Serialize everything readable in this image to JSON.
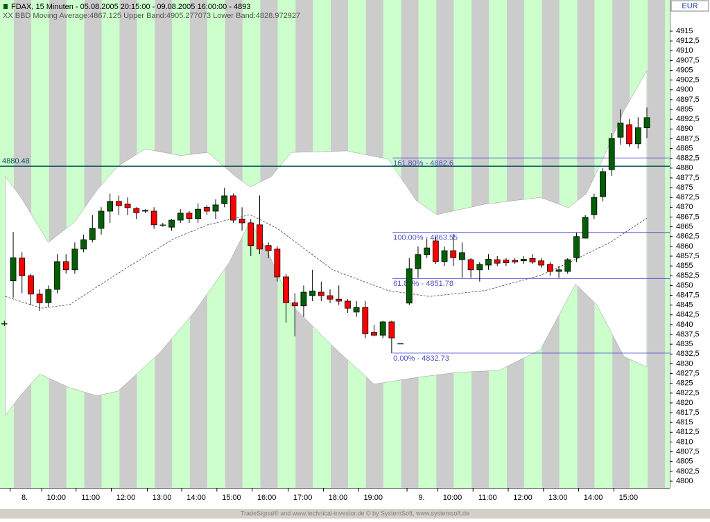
{
  "chart_data": {
    "type": "candlestick",
    "title": "FDAX, 15 Minuten - 05.08.2005 20:15:00 - 09.08.2005 16:00:00 - 4893",
    "subtitle": "XX BBD Moving Average:4867.125 Upper Band:4905.277073 Lower Band:4828.972927",
    "currency": "EUR",
    "footer": "TradeSignal® and www.technical-investor.de © by SystemSoft, www.systemsoft.de",
    "up_color": "#006000",
    "down_color": "#ff0000",
    "open": [
      4840.3,
      4851.2,
      4857,
      4852.5,
      4847.8,
      4845.6,
      4849,
      4856.1,
      4854,
      4859.3,
      4861.7,
      4864.6,
      4869,
      4871.5,
      4870.8,
      4869.7,
      4869,
      4869,
      4865.5,
      4864.9,
      4866.7,
      4868.5,
      4867.1,
      4870,
      4869,
      4870.9,
      4872.9,
      4867,
      4866,
      4865.5,
      4860.2,
      4859.3,
      4852.2,
      4845.6,
      4844.8,
      4847.4,
      4848.3,
      4847.4,
      4846.5,
      4846,
      4843.2,
      4844.4,
      4838,
      4837.3,
      4840.7,
      4835.2,
      4845.5,
      4854.3,
      4857.9,
      4861.4,
      4856.1,
      4858.9,
      4856.6,
      4856.6,
      4854,
      4855.2,
      4856.6,
      4856.5,
      4856.4,
      4856.3,
      4856.9,
      4856.3,
      4855.4,
      4853.6,
      4853.6,
      4857.1,
      4862.1,
      4868.1,
      4872.7,
      4879.6,
      4887.9,
      4891.1,
      4886.2,
      4890.3
    ],
    "high": [
      4841,
      4863.7,
      4858.5,
      4853,
      4849,
      4850,
      4858,
      4858,
      4861,
      4863,
      4868,
      4870,
      4873.5,
      4873,
      4872.5,
      4870,
      4869.5,
      4870,
      4866,
      4867,
      4869.5,
      4869,
      4871,
      4870.5,
      4872,
      4875,
      4873.5,
      4870,
      4867,
      4873,
      4861,
      4860,
      4853,
      4848,
      4850,
      4854,
      4851,
      4849,
      4850,
      4846.5,
      4846,
      4846,
      4840,
      4841,
      4841,
      4835.2,
      4857,
      4860,
      4862,
      4862.5,
      4860,
      4863.2,
      4861,
      4857,
      4856,
      4858,
      4857.5,
      4857,
      4857,
      4857.5,
      4858,
      4857,
      4856,
      4855,
      4857,
      4863.5,
      4868,
      4873.5,
      4880,
      4889,
      4895,
      4892.5,
      4893,
      4895.5
    ],
    "low": [
      4839.6,
      4846.9,
      4848,
      4845,
      4843.5,
      4844.5,
      4848,
      4853,
      4853,
      4858.5,
      4861,
      4863,
      4866,
      4868,
      4868,
      4867,
      4868.5,
      4864.5,
      4865,
      4864,
      4866,
      4866,
      4866,
      4868,
      4867,
      4870,
      4866,
      4864,
      4857.5,
      4858,
      4857,
      4851,
      4840.5,
      4837,
      4842,
      4846,
      4846,
      4845.5,
      4845,
      4843,
      4842,
      4836.5,
      4837,
      4836.5,
      4832.7,
      4835.2,
      4845,
      4852,
      4857,
      4855.5,
      4855,
      4855,
      4852,
      4852,
      4851,
      4854,
      4855,
      4855,
      4855.5,
      4855.5,
      4855.5,
      4854.5,
      4852.5,
      4852,
      4853,
      4856,
      4862,
      4867,
      4871.5,
      4878,
      4886,
      4885.5,
      4885,
      4887.7
    ],
    "close": [
      4840.3,
      4857.1,
      4852.5,
      4847.8,
      4845.6,
      4849,
      4856.1,
      4854,
      4859.3,
      4861.7,
      4864.6,
      4869,
      4871.5,
      4870.4,
      4869.9,
      4868.6,
      4869.2,
      4865.5,
      4865.5,
      4866.7,
      4868.5,
      4867.1,
      4869.5,
      4869,
      4870.6,
      4872.9,
      4866.7,
      4866,
      4860.2,
      4859.3,
      4858.9,
      4852.2,
      4845.6,
      4844.8,
      4848.3,
      4848.6,
      4847.4,
      4846.5,
      4846,
      4844.2,
      4844.4,
      4837.7,
      4837.3,
      4840.7,
      4836.6,
      4835.2,
      4854.3,
      4857.9,
      4859.6,
      4856.1,
      4858.9,
      4857.1,
      4858.4,
      4854,
      4855.4,
      4856.7,
      4855.7,
      4855.8,
      4856,
      4856.7,
      4856,
      4855.2,
      4853.6,
      4854,
      4856.6,
      4862.5,
      4867.4,
      4872.5,
      4879.1,
      4887.6,
      4891.5,
      4886.2,
      4890.3,
      4892.9
    ],
    "upper_band": {
      "x": [
        0.1,
        1.9,
        4,
        5,
        8,
        10.5,
        12.9,
        16,
        20,
        23.1,
        26.3,
        27.9,
        30.3,
        32.6,
        38.9,
        43.6,
        46.8,
        49.1,
        54.6,
        60.9,
        64.1,
        66.1,
        68,
        70.4,
        73
      ],
      "values": [
        4877.8,
        4872.5,
        4864.6,
        4861,
        4866.3,
        4874.3,
        4880.5,
        4884.9,
        4883.2,
        4884,
        4877.8,
        4875.2,
        4877.8,
        4884,
        4884.4,
        4882.3,
        4871.7,
        4868.1,
        4870.8,
        4872.5,
        4869.9,
        4873.4,
        4882.3,
        4894.7,
        4904.9
      ]
    },
    "lower_band": {
      "x": [
        0.1,
        1.9,
        4,
        7.4,
        10.5,
        12.9,
        17.6,
        21.6,
        25.5,
        27.9,
        29.8,
        32.6,
        37.3,
        42,
        46.8,
        51.5,
        56.2,
        60.9,
        64.9,
        67.3,
        70.4,
        73
      ],
      "values": [
        4816.8,
        4822.1,
        4827.4,
        4823.9,
        4821.8,
        4823,
        4832.7,
        4843.3,
        4855.7,
        4866.3,
        4859.3,
        4845.1,
        4834.5,
        4824.8,
        4826.5,
        4827.8,
        4828.3,
        4833.6,
        4850.4,
        4845.1,
        4831.8,
        4829.2
      ]
    },
    "moving_average": {
      "x": [
        0.1,
        4.2,
        7.4,
        12.9,
        19.2,
        23.1,
        27.9,
        31,
        37.3,
        43.6,
        48.3,
        54.6,
        60.9,
        64.1,
        68.8,
        73
      ],
      "values": [
        4847.2,
        4844.2,
        4845.1,
        4853.1,
        4861.9,
        4865.5,
        4868.1,
        4864.6,
        4854,
        4848.7,
        4847.2,
        4848.7,
        4852.6,
        4855.8,
        4861,
        4867.2
      ]
    },
    "hline": {
      "label": "4880.48",
      "value": 4880.48
    },
    "fib_start": 44.1,
    "fib_levels": [
      {
        "label": "161.80% - 4882.6",
        "value": 4882.6
      },
      {
        "label": "100.00% - 4863.55",
        "value": 4863.55
      },
      {
        "label": "61.80% - 4851.78",
        "value": 4851.78
      },
      {
        "label": "0.00% - 4832.73",
        "value": 4832.73
      }
    ],
    "xlim": [
      -0.5,
      75.6
    ],
    "xticks": [
      {
        "value": 2.3,
        "label": "8."
      },
      {
        "value": 5.9,
        "label": "10:00"
      },
      {
        "value": 9.8,
        "label": "11:00"
      },
      {
        "value": 13.8,
        "label": "12:00"
      },
      {
        "value": 17.9,
        "label": "13:00"
      },
      {
        "value": 21.8,
        "label": "14:00"
      },
      {
        "value": 25.8,
        "label": "15:00"
      },
      {
        "value": 29.8,
        "label": "16:00"
      },
      {
        "value": 33.9,
        "label": "17:00"
      },
      {
        "value": 37.9,
        "label": "18:00"
      },
      {
        "value": 41.9,
        "label": "19:00"
      },
      {
        "value": 47.4,
        "label": "9."
      },
      {
        "value": 50.9,
        "label": "10:00"
      },
      {
        "value": 54.9,
        "label": "11:00"
      },
      {
        "value": 58.9,
        "label": "12:00"
      },
      {
        "value": 62.9,
        "label": "13:00"
      },
      {
        "value": 66.9,
        "label": "14:00"
      },
      {
        "value": 70.9,
        "label": "15:00"
      }
    ],
    "ylim": [
      4798.23,
      4922.96
    ],
    "yticks": [
      4800,
      {
        "value": 4802.5,
        "label": "4802,5"
      },
      4805,
      {
        "value": 4807.5,
        "label": "4807,5"
      },
      4810,
      {
        "value": 4812.5,
        "label": "4812,5"
      },
      4815,
      {
        "value": 4817.5,
        "label": "4817,5"
      },
      4820,
      {
        "value": 4822.5,
        "label": "4822,5"
      },
      4825,
      {
        "value": 4827.5,
        "label": "4827,5"
      },
      4830,
      {
        "value": 4832.5,
        "label": "4832,5"
      },
      4835,
      {
        "value": 4837.5,
        "label": "4837,5"
      },
      4840,
      {
        "value": 4842.5,
        "label": "4842,5"
      },
      4845,
      {
        "value": 4847.5,
        "label": "4847,5"
      },
      4850,
      {
        "value": 4852.5,
        "label": "4852,5"
      },
      4855,
      {
        "value": 4857.5,
        "label": "4857,5"
      },
      4860,
      {
        "value": 4862.5,
        "label": "4862,5"
      },
      4865,
      {
        "value": 4867.5,
        "label": "4867,5"
      },
      4870,
      {
        "value": 4872.5,
        "label": "4872,5"
      },
      4875,
      {
        "value": 4877.5,
        "label": "4877,5"
      },
      4880,
      {
        "value": 4882.5,
        "label": "4882,5"
      },
      4885,
      {
        "value": 4887.5,
        "label": "4887,5"
      },
      4890,
      {
        "value": 4892.5,
        "label": "4892,5"
      },
      4895,
      {
        "value": 4897.5,
        "label": "4897,5"
      },
      4900,
      {
        "value": 4902.5,
        "label": "4902,5"
      },
      4905,
      {
        "value": 4907.5,
        "label": "4907,5"
      },
      4910,
      {
        "value": 4912.5,
        "label": "4912,5"
      },
      4915
    ]
  }
}
